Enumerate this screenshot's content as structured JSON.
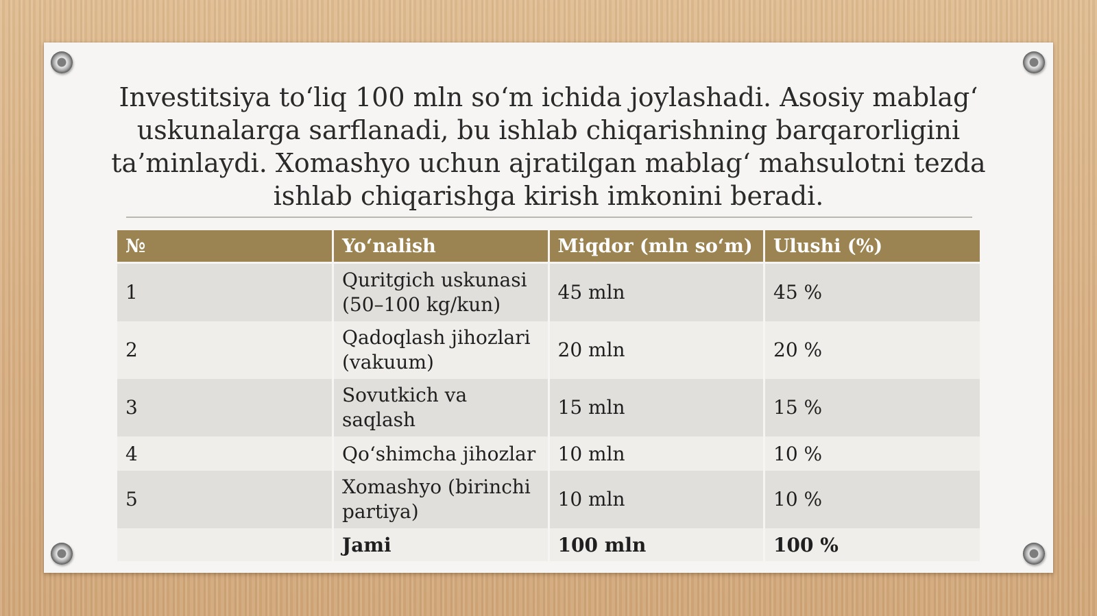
{
  "title": "Investitsiya to‘liq 100 mln so‘m ichida joylashadi. Asosiy mablag‘ uskunalarga sarflanadi, bu ishlab chiqarishning barqarorligini ta’minlaydi. Xomashyo uchun ajratilgan mablag‘ mahsulotni tezda ishlab chiqarishga kirish imkonini beradi.",
  "table": {
    "headers": [
      "№",
      "Yo‘nalish",
      "Miqdor (mln so‘m)",
      "Ulushi (%)"
    ],
    "rows": [
      [
        "1",
        "Quritgich uskunasi (50–100 kg/kun)",
        "45 mln",
        "45 %"
      ],
      [
        "2",
        "Qadoqlash jihozlari (vakuum)",
        "20 mln",
        "20 %"
      ],
      [
        "3",
        "Sovutkich va saqlash",
        "15 mln",
        "15 %"
      ],
      [
        "4",
        "Qo‘shimcha jihozlar",
        "10 mln",
        "10 %"
      ],
      [
        "5",
        "Xomashyo (birinchi partiya)",
        "10 mln",
        "10 %"
      ]
    ],
    "total": [
      "",
      "Jami",
      "100 mln",
      "100 %"
    ]
  },
  "colors": {
    "header_bg": "#9b8451",
    "row_odd": "#e1dfdb",
    "row_even": "#efeeeb",
    "card_bg": "#f6f5f3"
  }
}
